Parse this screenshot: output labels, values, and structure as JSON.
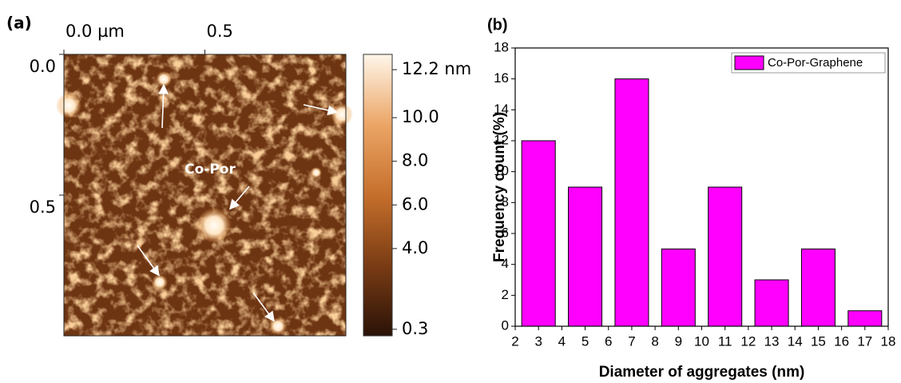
{
  "chart_data": [
    {
      "type": "image",
      "title": "(a)",
      "annotation": "Co-Por",
      "xlim": [
        0,
        1
      ],
      "xticks": [
        {
          "value": 0,
          "label": "0.0 µm"
        },
        0.5
      ],
      "ylim": [
        0,
        1
      ],
      "yticks": [
        {
          "value": 0,
          "label": "0.0"
        },
        0.5
      ],
      "clim": [
        0,
        12.9
      ],
      "cticks": [
        {
          "value": 12.2,
          "label": "12.2 nm"
        },
        {
          "value": 10,
          "label": "10.0"
        },
        {
          "value": 8,
          "label": "8.0"
        },
        {
          "value": 6,
          "label": "6.0"
        },
        {
          "value": 4,
          "label": "4.0"
        },
        0.3
      ],
      "colormap": [
        "#2a1207",
        "#7a3c14",
        "#c66f2c",
        "#eba566",
        "#fff6ea"
      ]
    },
    {
      "type": "histogram",
      "title": "(b)",
      "xlabel": "Diameter of aggregates (nm)",
      "ylabel": "Frequency count (%)",
      "bins": [
        2,
        4,
        6,
        8,
        10,
        12,
        14,
        16,
        18
      ],
      "series": [
        {
          "name": "Co-Por-Graphene",
          "color": "#ff00ff",
          "values": [
            12,
            9,
            16,
            5,
            9,
            3,
            5,
            1
          ]
        }
      ],
      "xlim": [
        2,
        18
      ],
      "xticks": [
        2,
        3,
        4,
        5,
        6,
        7,
        8,
        9,
        10,
        11,
        12,
        13,
        14,
        15,
        16,
        17,
        18
      ],
      "ylim": [
        0,
        18
      ],
      "yticks": [
        0,
        2,
        4,
        6,
        8,
        10,
        12,
        14,
        16,
        18
      ],
      "legend": "upper right"
    }
  ]
}
